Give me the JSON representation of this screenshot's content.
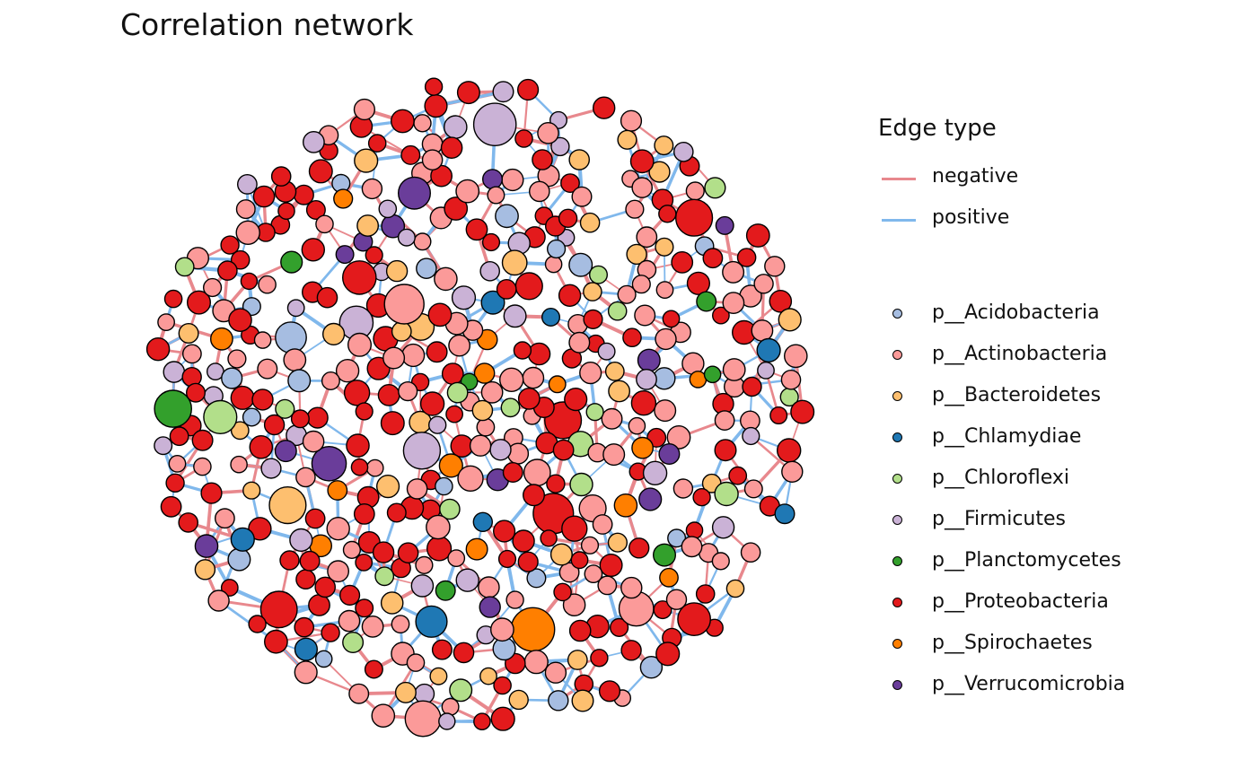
{
  "title": "Correlation network",
  "legend_edges": {
    "title": "Edge type",
    "items": [
      {
        "label": "negative",
        "color": "#e8888d"
      },
      {
        "label": "positive",
        "color": "#80b8ec"
      }
    ]
  },
  "legend_phyla": {
    "items": [
      {
        "label": "p__Acidobacteria",
        "color": "#a6bde1"
      },
      {
        "label": "p__Actinobacteria",
        "color": "#fb9a99"
      },
      {
        "label": "p__Bacteroidetes",
        "color": "#fdbf6f"
      },
      {
        "label": "p__Chlamydiae",
        "color": "#1f78b4"
      },
      {
        "label": "p__Chloroflexi",
        "color": "#b2df8a"
      },
      {
        "label": "p__Firmicutes",
        "color": "#cab2d6"
      },
      {
        "label": "p__Planctomycetes",
        "color": "#33a02c"
      },
      {
        "label": "p__Proteobacteria",
        "color": "#e31a1c"
      },
      {
        "label": "p__Spirochaetes",
        "color": "#ff7f00"
      },
      {
        "label": "p__Verrucomicrobia",
        "color": "#6a3d9a"
      }
    ]
  }
}
